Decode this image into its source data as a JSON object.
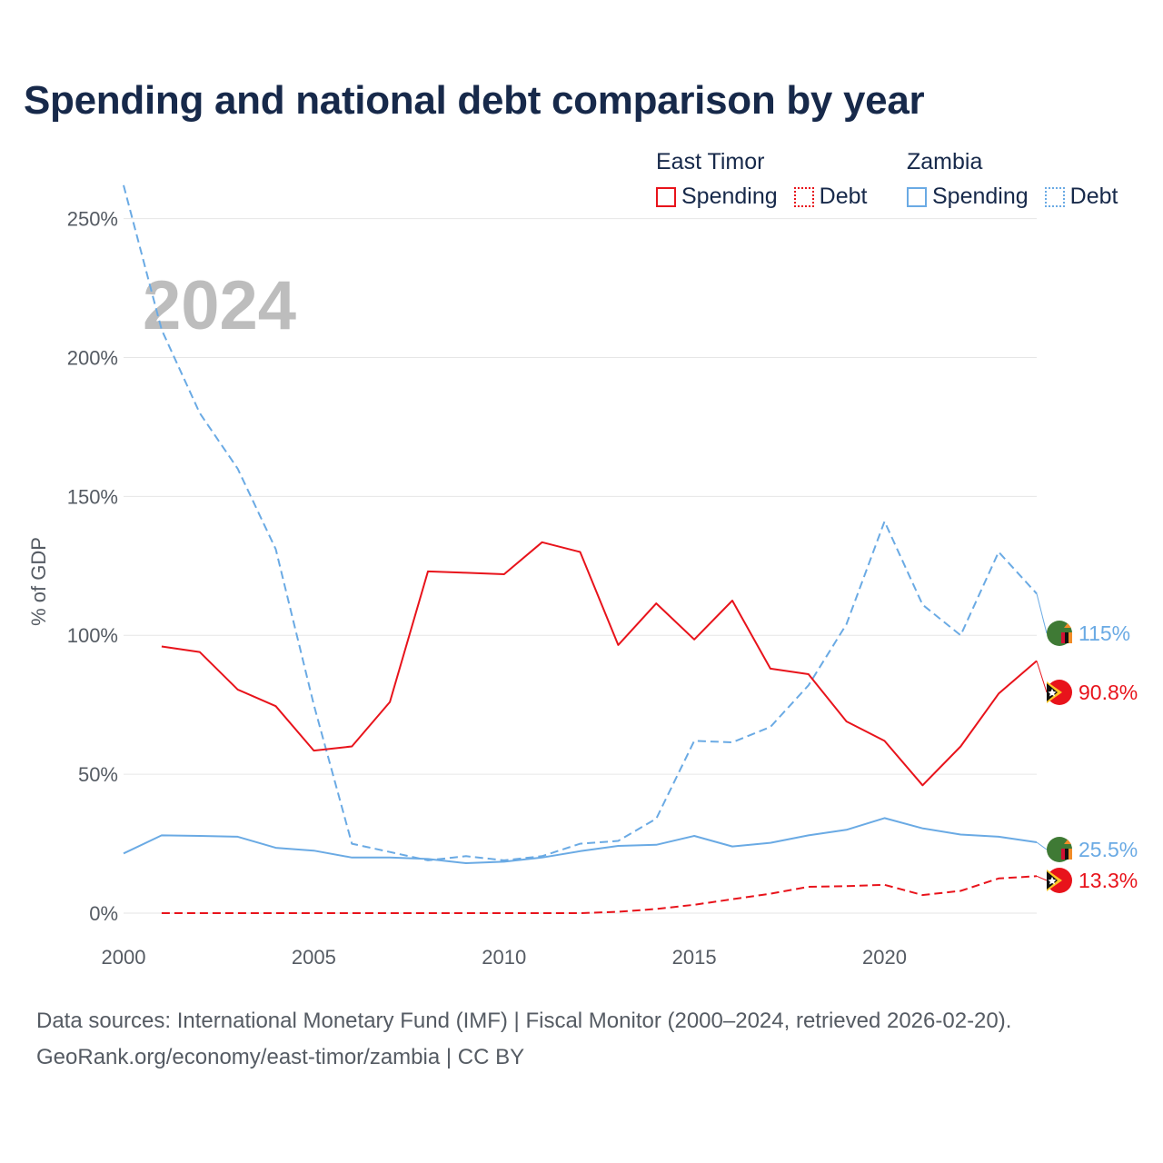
{
  "title": "Spending and national debt comparison by year",
  "legend": {
    "groups": [
      {
        "name": "East Timor",
        "color": "#e8131b",
        "items": [
          {
            "label": "Spending",
            "style": "solid"
          },
          {
            "label": "Debt",
            "style": "dotted"
          }
        ]
      },
      {
        "name": "Zambia",
        "color": "#6aaae4",
        "items": [
          {
            "label": "Spending",
            "style": "solid"
          },
          {
            "label": "Debt",
            "style": "dotted"
          }
        ]
      }
    ]
  },
  "year_watermark": "2024",
  "source": {
    "line1": "Data sources: International Monetary Fund (IMF) | Fiscal Monitor (2000–2024, retrieved 2026-02-20).",
    "line2": "GeoRank.org/economy/east-timor/zambia | CC BY"
  },
  "chart_data": {
    "type": "line",
    "title": "Spending and national debt comparison by year",
    "xlabel": "",
    "ylabel": "% of GDP",
    "xlim": [
      2000,
      2024
    ],
    "ylim": [
      0,
      260
    ],
    "x_ticks": [
      2000,
      2005,
      2010,
      2015,
      2020
    ],
    "y_ticks": [
      {
        "value": 0,
        "label": "0%"
      },
      {
        "value": 50,
        "label": "50%"
      },
      {
        "value": 100,
        "label": "100%"
      },
      {
        "value": 150,
        "label": "150%"
      },
      {
        "value": 200,
        "label": "200%"
      },
      {
        "value": 250,
        "label": "250%"
      }
    ],
    "grid": true,
    "series": [
      {
        "name": "Zambia Debt",
        "country": "Zambia",
        "metric": "Debt",
        "color": "#6aaae4",
        "dash": "dashed",
        "end_label": "115%",
        "flag": "zambia-flag",
        "x": [
          2000,
          2001,
          2002,
          2003,
          2004,
          2005,
          2006,
          2007,
          2008,
          2009,
          2010,
          2011,
          2012,
          2013,
          2014,
          2015,
          2016,
          2017,
          2018,
          2019,
          2020,
          2021,
          2022,
          2023,
          2024
        ],
        "values": [
          262,
          210,
          180,
          160,
          131,
          75,
          25,
          22,
          19,
          20.5,
          19,
          20.5,
          25,
          26,
          34,
          62,
          61.5,
          67,
          82,
          104,
          141,
          111,
          100,
          130,
          115
        ]
      },
      {
        "name": "East Timor Spending",
        "country": "East Timor",
        "metric": "Spending",
        "color": "#e8131b",
        "dash": "solid",
        "end_label": "90.8%",
        "flag": "east-timor-flag",
        "x": [
          2001,
          2002,
          2003,
          2004,
          2005,
          2006,
          2007,
          2008,
          2009,
          2010,
          2011,
          2012,
          2013,
          2014,
          2015,
          2016,
          2017,
          2018,
          2019,
          2020,
          2021,
          2022,
          2023,
          2024
        ],
        "values": [
          96,
          94,
          80.5,
          74.5,
          58.5,
          60,
          76,
          123,
          122.5,
          122,
          133.5,
          130,
          96.5,
          111.5,
          98.5,
          112.5,
          88,
          86,
          69,
          62,
          46,
          60,
          79,
          90.8
        ]
      },
      {
        "name": "Zambia Spending",
        "country": "Zambia",
        "metric": "Spending",
        "color": "#6aaae4",
        "dash": "solid",
        "end_label": "25.5%",
        "flag": "zambia-flag",
        "x": [
          2000,
          2001,
          2002,
          2003,
          2004,
          2005,
          2006,
          2007,
          2008,
          2009,
          2010,
          2011,
          2012,
          2013,
          2014,
          2015,
          2016,
          2017,
          2018,
          2019,
          2020,
          2021,
          2022,
          2023,
          2024
        ],
        "values": [
          21.5,
          28,
          27.8,
          27.5,
          23.5,
          22.5,
          20,
          20,
          19.5,
          18,
          18.5,
          20,
          22.3,
          24.2,
          24.6,
          27.8,
          24,
          25.3,
          28,
          30,
          34.2,
          30.5,
          28.3,
          27.5,
          25.5
        ]
      },
      {
        "name": "East Timor Debt",
        "country": "East Timor",
        "metric": "Debt",
        "color": "#e8131b",
        "dash": "dashed",
        "end_label": "13.3%",
        "flag": "east-timor-flag",
        "x": [
          2001,
          2002,
          2003,
          2004,
          2005,
          2006,
          2007,
          2008,
          2009,
          2010,
          2011,
          2012,
          2013,
          2014,
          2015,
          2016,
          2017,
          2018,
          2019,
          2020,
          2021,
          2022,
          2023,
          2024
        ],
        "values": [
          0,
          0,
          0,
          0,
          0,
          0,
          0,
          0,
          0,
          0,
          0,
          0,
          0.5,
          1.5,
          3,
          5,
          7,
          9.5,
          9.7,
          10.2,
          6.5,
          8,
          12.5,
          13.3
        ]
      }
    ]
  }
}
